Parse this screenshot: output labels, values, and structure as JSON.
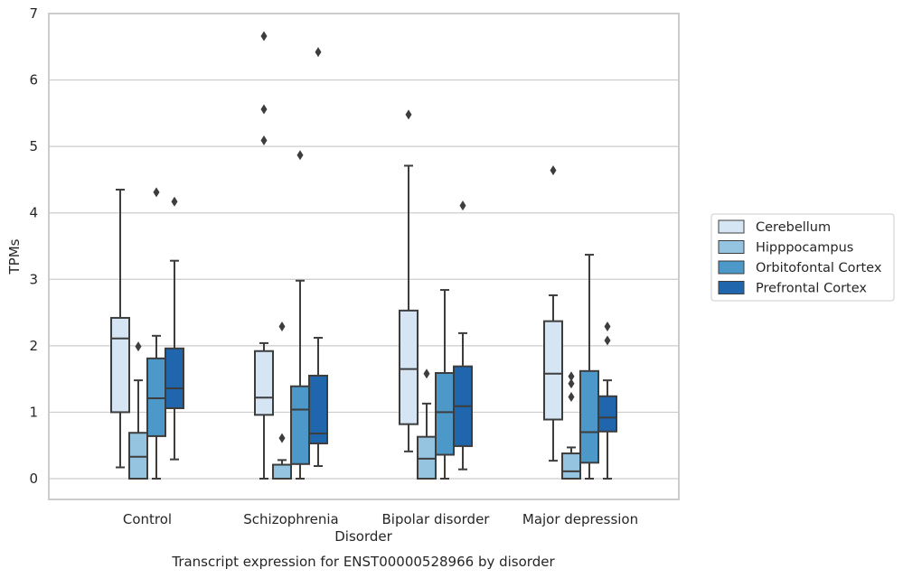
{
  "chart_data": {
    "type": "box",
    "title": "",
    "caption": "Transcript expression for ENST00000528966 by disorder",
    "xlabel": "Disorder",
    "ylabel": "TPMs",
    "ylim": [
      -0.3,
      7
    ],
    "yticks": [
      0,
      1,
      2,
      3,
      4,
      5,
      6,
      7
    ],
    "grid": "horizontal",
    "legend_position": "right",
    "categories": [
      "Control",
      "Schizophrenia",
      "Bipolar disorder",
      "Major depression"
    ],
    "series": [
      {
        "name": "Cerebellum",
        "color": "#d6e5f4",
        "boxes": [
          {
            "min": 0.17,
            "q1": 1.0,
            "median": 2.11,
            "q3": 2.42,
            "max": 4.35,
            "outliers": []
          },
          {
            "min": 0.0,
            "q1": 0.96,
            "median": 1.22,
            "q3": 1.92,
            "max": 2.04,
            "outliers": [
              5.09,
              5.56,
              6.66
            ]
          },
          {
            "min": 0.41,
            "q1": 0.82,
            "median": 1.65,
            "q3": 2.53,
            "max": 4.71,
            "outliers": [
              5.48
            ]
          },
          {
            "min": 0.27,
            "q1": 0.89,
            "median": 1.58,
            "q3": 2.37,
            "max": 2.76,
            "outliers": [
              4.64
            ]
          }
        ]
      },
      {
        "name": "Hipppocampus",
        "color": "#94c4df",
        "boxes": [
          {
            "min": 0.0,
            "q1": 0.0,
            "median": 0.33,
            "q3": 0.69,
            "max": 1.48,
            "outliers": [
              1.99
            ]
          },
          {
            "min": 0.0,
            "q1": 0.0,
            "median": 0.0,
            "q3": 0.21,
            "max": 0.28,
            "outliers": [
              0.61,
              2.29
            ]
          },
          {
            "min": 0.0,
            "q1": 0.0,
            "median": 0.3,
            "q3": 0.63,
            "max": 1.13,
            "outliers": [
              1.58
            ]
          },
          {
            "min": 0.0,
            "q1": 0.0,
            "median": 0.11,
            "q3": 0.38,
            "max": 0.47,
            "outliers": [
              1.23,
              1.43,
              1.54
            ]
          }
        ]
      },
      {
        "name": "Orbitofontal Cortex",
        "color": "#4b98c9",
        "boxes": [
          {
            "min": 0.0,
            "q1": 0.64,
            "median": 1.21,
            "q3": 1.81,
            "max": 2.15,
            "outliers": [
              4.31
            ]
          },
          {
            "min": 0.0,
            "q1": 0.22,
            "median": 1.04,
            "q3": 1.39,
            "max": 2.98,
            "outliers": [
              4.87
            ]
          },
          {
            "min": 0.0,
            "q1": 0.36,
            "median": 1.0,
            "q3": 1.59,
            "max": 2.84,
            "outliers": []
          },
          {
            "min": 0.0,
            "q1": 0.24,
            "median": 0.7,
            "q3": 1.62,
            "max": 3.37,
            "outliers": []
          }
        ]
      },
      {
        "name": "Prefrontal Cortex",
        "color": "#2066ac",
        "boxes": [
          {
            "min": 0.29,
            "q1": 1.06,
            "median": 1.36,
            "q3": 1.96,
            "max": 3.28,
            "outliers": [
              4.17
            ]
          },
          {
            "min": 0.19,
            "q1": 0.53,
            "median": 0.68,
            "q3": 1.55,
            "max": 2.12,
            "outliers": [
              6.42
            ]
          },
          {
            "min": 0.14,
            "q1": 0.49,
            "median": 1.09,
            "q3": 1.69,
            "max": 2.19,
            "outliers": [
              4.11
            ]
          },
          {
            "min": 0.0,
            "q1": 0.71,
            "median": 0.92,
            "q3": 1.24,
            "max": 1.48,
            "outliers": [
              2.08,
              2.29
            ]
          }
        ]
      }
    ]
  }
}
